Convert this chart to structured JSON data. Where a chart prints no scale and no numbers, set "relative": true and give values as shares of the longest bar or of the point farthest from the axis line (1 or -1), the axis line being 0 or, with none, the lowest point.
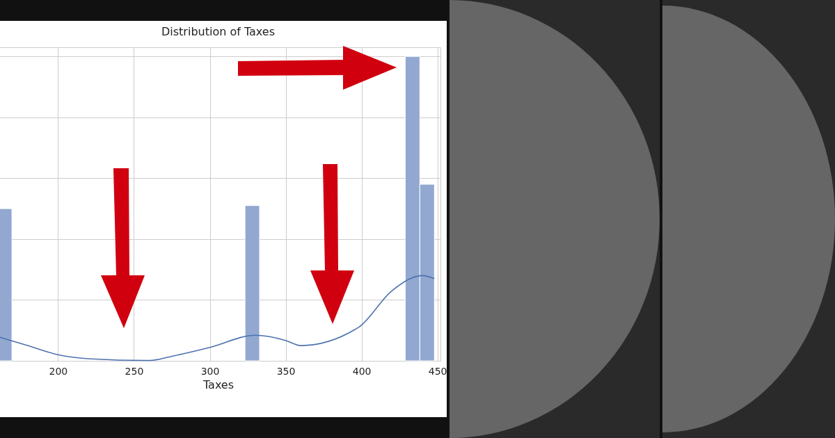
{
  "chart_data": {
    "type": "histogram",
    "title": "Distribution of Taxes",
    "xlabel": "Taxes",
    "relative": true,
    "grid": true,
    "bins": [
      160,
      169.6,
      179.2,
      188.8,
      198.4,
      208,
      217.6,
      227.2,
      236.8,
      246.4,
      256,
      265.6,
      275.2,
      284.8,
      294.4,
      304,
      313.6,
      323.2,
      332.8,
      342.4,
      352,
      361.6,
      371.2,
      380.8,
      390.4,
      400,
      409.6,
      419.2,
      428.8,
      438.4,
      448
    ],
    "xlim": [
      159,
      452
    ],
    "xticks": [
      200,
      250,
      300,
      350,
      400,
      450
    ],
    "series": [
      {
        "type": "histogram",
        "color": "#92a8d1",
        "values": [
          0.5,
          0,
          0,
          0,
          0,
          0,
          0,
          0,
          0,
          0,
          0,
          0,
          0,
          0,
          0,
          0,
          0,
          0.51,
          0,
          0,
          0,
          0,
          0,
          0,
          0,
          0,
          0,
          0,
          1,
          0.58
        ]
      },
      {
        "type": "line",
        "color": "#4c72b0",
        "x": [
          160,
          180,
          200,
          220,
          260,
          275,
          300,
          330,
          350,
          360,
          398,
          420,
          440,
          448
        ],
        "values": [
          0.08,
          0.05,
          0.02,
          0.007,
          0.001,
          0.015,
          0.044,
          0.084,
          0.067,
          0.05,
          0.11,
          0.23,
          0.28,
          0.27
        ]
      }
    ]
  }
}
